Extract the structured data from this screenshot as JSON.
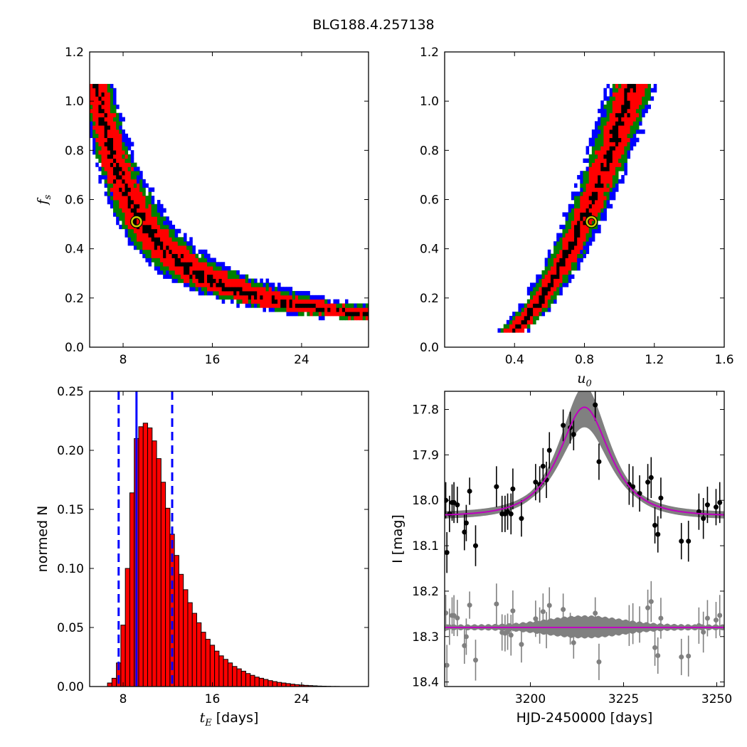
{
  "suptitle": "BLG188.4.257138",
  "colors": {
    "sigma1": "#000000",
    "sigma2": "#ff0000",
    "sigma3": "#008000",
    "sigma4": "#0000ff",
    "best_fit_marker": "#cccc00",
    "hist_fill": "#ff0000",
    "hist_line": "#0000ff",
    "model_curve": "#bf00bf",
    "model_band": "#808080",
    "residual_points": "#808080"
  },
  "chart_data": [
    {
      "id": "tE_fs",
      "type": "heatmap",
      "xlim": [
        5,
        30
      ],
      "ylim": [
        0,
        1.2
      ],
      "xticks": [
        8,
        16,
        24
      ],
      "xtick_labels": [
        "8",
        "16",
        "24"
      ],
      "yticks": [
        0,
        0.2,
        0.4,
        0.6,
        0.8,
        1.0,
        1.2
      ],
      "ytick_labels": [
        "0.0",
        "0.2",
        "0.4",
        "0.6",
        "0.8",
        "1.0",
        "1.2"
      ],
      "xlabel": "",
      "ylabel": "f_s",
      "best_fit": {
        "x": 9.2,
        "y": 0.51
      },
      "fs_range": [
        0.06,
        1.07
      ],
      "ridge": {
        "form": "power",
        "a": 0.465,
        "b": 9.2,
        "c": 1.32,
        "d": 0.03
      },
      "bands": {
        "sigma1": 0.05,
        "sigma2": 0.15,
        "sigma3": 0.2,
        "sigma4": 0.25
      }
    },
    {
      "id": "u0_fs",
      "type": "heatmap",
      "xlim": [
        0,
        1.6
      ],
      "ylim": [
        0,
        1.2
      ],
      "xticks": [
        0.4,
        0.8,
        1.2,
        1.6
      ],
      "xtick_labels": [
        "0.4",
        "0.8",
        "1.2",
        "1.6"
      ],
      "yticks": [
        0,
        0.2,
        0.4,
        0.6,
        0.8,
        1.0,
        1.2
      ],
      "ytick_labels": [
        "0.0",
        "0.2",
        "0.4",
        "0.6",
        "0.8",
        "1.0",
        "1.2"
      ],
      "xlabel": "u_0",
      "ylabel": "",
      "best_fit": {
        "x": 0.84,
        "y": 0.51
      },
      "fs_range": [
        0.06,
        1.07
      ],
      "ridge": {
        "form": "linear",
        "p": 0.16,
        "q": 0.93
      },
      "bands": {
        "sigma1": 0.02,
        "sigma2": 0.06,
        "sigma3": 0.085,
        "sigma4": 0.11
      }
    },
    {
      "id": "tE_hist",
      "type": "bar",
      "xlim": [
        5,
        30
      ],
      "ylim": [
        0,
        0.25
      ],
      "xticks": [
        8,
        16,
        24
      ],
      "xtick_labels": [
        "8",
        "16",
        "24"
      ],
      "yticks": [
        0,
        0.05,
        0.1,
        0.15,
        0.2,
        0.25
      ],
      "ytick_labels": [
        "0.00",
        "0.05",
        "0.10",
        "0.15",
        "0.20",
        "0.25"
      ],
      "xlabel": "t_E [days]",
      "ylabel": "normed N",
      "bin_start": 5.0,
      "bin_width": 0.4,
      "values": [
        0,
        0,
        0,
        0,
        0.003,
        0.007,
        0.02,
        0.052,
        0.1,
        0.164,
        0.21,
        0.22,
        0.223,
        0.219,
        0.208,
        0.193,
        0.173,
        0.151,
        0.129,
        0.111,
        0.095,
        0.082,
        0.071,
        0.062,
        0.054,
        0.046,
        0.04,
        0.035,
        0.03,
        0.026,
        0.023,
        0.02,
        0.017,
        0.015,
        0.013,
        0.011,
        0.0095,
        0.008,
        0.007,
        0.006,
        0.005,
        0.0042,
        0.0035,
        0.003,
        0.0025,
        0.002,
        0.0016,
        0.0013,
        0.001,
        0.0008,
        0.0006,
        0.0004,
        0.0003,
        0.0002,
        0.0001,
        0.0001,
        0,
        0,
        0,
        0,
        0,
        0,
        0
      ],
      "best": 9.2,
      "lower": 7.6,
      "upper": 12.4
    },
    {
      "id": "lightcurve",
      "type": "scatter",
      "xlim": [
        3177,
        3252
      ],
      "ylim": [
        18.41,
        17.76
      ],
      "xticks": [
        3200,
        3225,
        3250
      ],
      "xtick_labels": [
        "3200",
        "3225",
        "3250"
      ],
      "yticks": [
        17.8,
        17.9,
        18.0,
        18.1,
        18.2,
        18.3,
        18.4
      ],
      "ytick_labels": [
        "17.8",
        "17.9",
        "18.0",
        "18.1",
        "18.2",
        "18.3",
        "18.4"
      ],
      "xlabel": "HJD-2450000 [days]",
      "ylabel": "I [mag]",
      "model": {
        "t0": 3214.5,
        "tE": 9.2,
        "u0": 0.84,
        "fs": 0.51,
        "base": 18.035
      },
      "residual_level": 18.28,
      "points": [
        [
          3177.3,
          18.0,
          0.04
        ],
        [
          3177.6,
          18.115,
          0.045
        ],
        [
          3178.3,
          18.03,
          0.04
        ],
        [
          3179.0,
          18.005,
          0.04
        ],
        [
          3179.5,
          18.005,
          0.045
        ],
        [
          3180.4,
          18.01,
          0.04
        ],
        [
          3182.3,
          18.07,
          0.04
        ],
        [
          3182.8,
          18.05,
          0.04
        ],
        [
          3183.7,
          17.98,
          0.03
        ],
        [
          3185.3,
          18.1,
          0.045
        ],
        [
          3190.9,
          17.97,
          0.045
        ],
        [
          3192.4,
          18.03,
          0.04
        ],
        [
          3193.2,
          18.03,
          0.04
        ],
        [
          3193.9,
          18.025,
          0.04
        ],
        [
          3194.8,
          18.03,
          0.045
        ],
        [
          3195.3,
          17.975,
          0.045
        ],
        [
          3197.6,
          18.04,
          0.04
        ],
        [
          3201.4,
          17.96,
          0.04
        ],
        [
          3202.5,
          17.965,
          0.04
        ],
        [
          3203.4,
          17.925,
          0.04
        ],
        [
          3204.3,
          17.955,
          0.04
        ],
        [
          3205.1,
          17.89,
          0.04
        ],
        [
          3208.8,
          17.835,
          0.035
        ],
        [
          3210.7,
          17.84,
          0.035
        ],
        [
          3211.6,
          17.855,
          0.035
        ],
        [
          3217.4,
          17.79,
          0.035
        ],
        [
          3218.4,
          17.915,
          0.04
        ],
        [
          3226.5,
          17.965,
          0.045
        ],
        [
          3227.5,
          17.97,
          0.045
        ],
        [
          3229.3,
          17.985,
          0.04
        ],
        [
          3231.5,
          17.96,
          0.04
        ],
        [
          3232.4,
          17.95,
          0.045
        ],
        [
          3233.4,
          18.055,
          0.04
        ],
        [
          3234.2,
          18.075,
          0.04
        ],
        [
          3235.0,
          17.995,
          0.045
        ],
        [
          3240.5,
          18.09,
          0.04
        ],
        [
          3242.4,
          18.09,
          0.045
        ],
        [
          3245.2,
          18.025,
          0.04
        ],
        [
          3246.4,
          18.04,
          0.045
        ],
        [
          3247.5,
          18.01,
          0.04
        ],
        [
          3249.8,
          18.015,
          0.04
        ],
        [
          3250.8,
          18.005,
          0.045
        ]
      ]
    }
  ]
}
